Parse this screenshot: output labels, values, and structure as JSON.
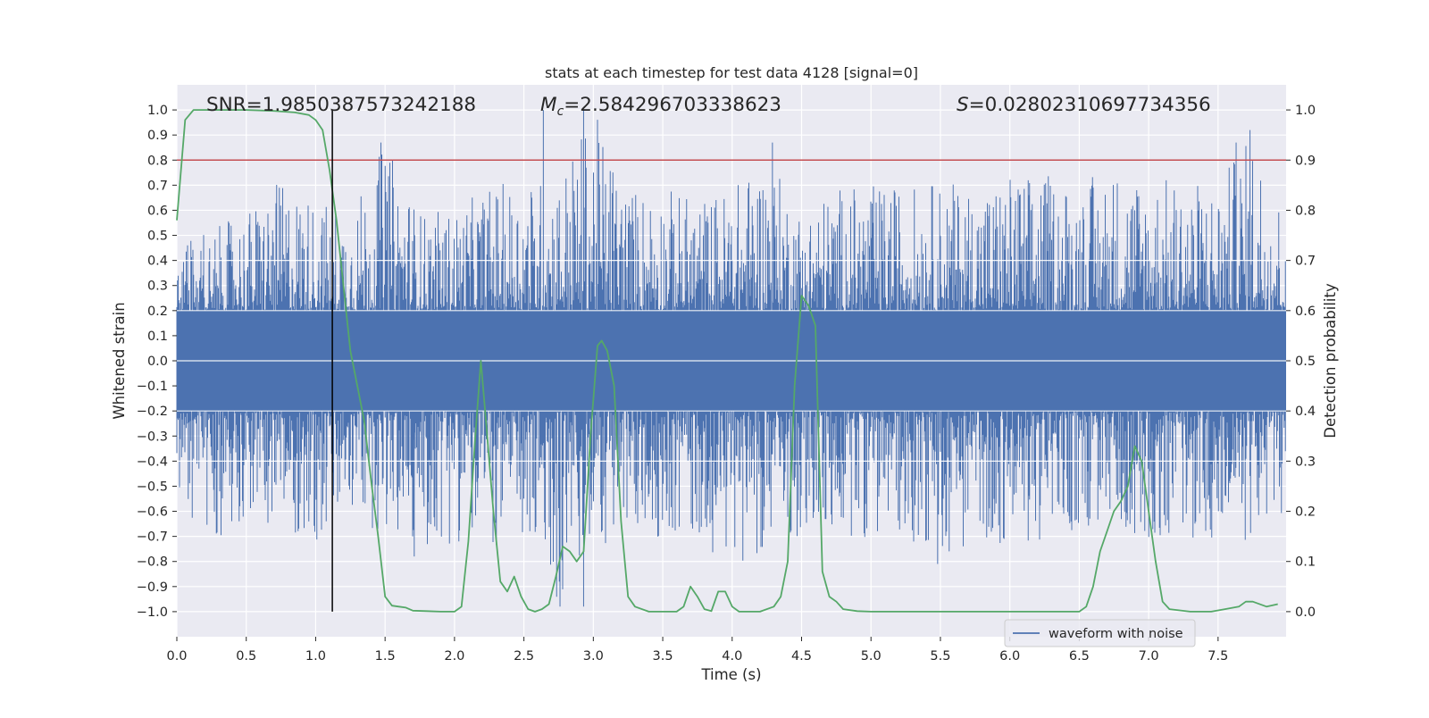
{
  "chart_data": {
    "type": "line",
    "title": "stats at each timestep for test data 4128 [signal=0]",
    "xlabel": "Time (s)",
    "ylabel": "Whitened strain",
    "ylabel_right": "Detection probability",
    "xlim": [
      0,
      7.99
    ],
    "ylim": [
      -1.1,
      1.1
    ],
    "ylim_right": [
      -0.05,
      1.05
    ],
    "x_ticks": [
      0.0,
      0.5,
      1.0,
      1.5,
      2.0,
      2.5,
      3.0,
      3.5,
      4.0,
      4.5,
      5.0,
      5.5,
      6.0,
      6.5,
      7.0,
      7.5
    ],
    "x_tick_labels": [
      "0.0",
      "0.5",
      "1.0",
      "1.5",
      "2.0",
      "2.5",
      "3.0",
      "3.5",
      "4.0",
      "4.5",
      "5.0",
      "5.5",
      "6.0",
      "6.5",
      "7.0",
      "7.5"
    ],
    "y_ticks": [
      -1.0,
      -0.9,
      -0.8,
      -0.7,
      -0.6,
      -0.5,
      -0.4,
      -0.3,
      -0.2,
      -0.1,
      0.0,
      0.1,
      0.2,
      0.3,
      0.4,
      0.5,
      0.6,
      0.7,
      0.8,
      0.9,
      1.0
    ],
    "y_tick_labels": [
      "−1.0",
      "−0.9",
      "−0.8",
      "−0.7",
      "−0.6",
      "−0.5",
      "−0.4",
      "−0.3",
      "−0.2",
      "−0.1",
      "0.0",
      "0.1",
      "0.2",
      "0.3",
      "0.4",
      "0.5",
      "0.6",
      "0.7",
      "0.8",
      "0.9",
      "1.0"
    ],
    "y_right_ticks": [
      0.0,
      0.1,
      0.2,
      0.3,
      0.4,
      0.5,
      0.6,
      0.7,
      0.8,
      0.9,
      1.0
    ],
    "y_right_tick_labels": [
      "0.0",
      "0.1",
      "0.2",
      "0.3",
      "0.4",
      "0.5",
      "0.6",
      "0.7",
      "0.8",
      "0.9",
      "1.0"
    ],
    "grid": true,
    "legend_position": "lower-right",
    "annotations": {
      "snr": "SNR=1.9850387573242188",
      "mc_symbol": "M",
      "mc_sub": "c",
      "mc_value": "=2.584296703338623",
      "s_symbol": "S",
      "s_value": "=0.02802310697734356"
    },
    "threshold": {
      "value": 0.8,
      "axis": "left",
      "color": "#c44e52"
    },
    "detection_marker_x": 1.12,
    "colors": {
      "waveform": "#4c72b0",
      "probability": "#55a868",
      "threshold": "#c44e52",
      "marker": "#000000",
      "background": "#eaeaf2",
      "grid": "#ffffff"
    },
    "series": [
      {
        "name": "waveform with noise",
        "axis": "left",
        "color": "#4c72b0",
        "core_band": [
          -0.2,
          0.2
        ],
        "envelope": {
          "x": [
            0.0,
            0.25,
            0.5,
            0.75,
            1.0,
            1.25,
            1.5,
            1.75,
            2.0,
            2.25,
            2.5,
            2.75,
            3.0,
            3.25,
            3.5,
            3.75,
            4.0,
            4.25,
            4.5,
            4.75,
            5.0,
            5.25,
            5.5,
            5.75,
            6.0,
            6.25,
            6.5,
            6.75,
            7.0,
            7.25,
            7.5,
            7.75,
            7.99
          ],
          "upper": [
            0.55,
            0.52,
            0.6,
            0.72,
            0.65,
            0.6,
            0.87,
            0.6,
            0.6,
            0.7,
            0.72,
            0.75,
            1.0,
            0.7,
            0.7,
            0.65,
            0.7,
            0.82,
            0.6,
            0.7,
            0.7,
            0.7,
            0.72,
            0.7,
            0.75,
            0.75,
            0.72,
            0.78,
            0.75,
            0.72,
            0.72,
            0.92,
            0.6
          ],
          "lower": [
            -0.65,
            -0.73,
            -0.62,
            -0.67,
            -0.75,
            -0.62,
            -0.7,
            -0.78,
            -0.72,
            -0.75,
            -0.75,
            -0.98,
            -0.75,
            -0.72,
            -0.7,
            -0.72,
            -0.82,
            -0.75,
            -0.7,
            -0.72,
            -0.7,
            -0.7,
            -0.8,
            -0.72,
            -0.75,
            -0.72,
            -0.7,
            -0.65,
            -0.72,
            -0.7,
            -0.75,
            -0.72,
            -0.6
          ]
        },
        "spikes": [
          {
            "x": 1.47,
            "y": 0.87
          },
          {
            "x": 2.64,
            "y": 1.0
          },
          {
            "x": 2.93,
            "y": 1.0
          },
          {
            "x": 4.29,
            "y": 0.87
          },
          {
            "x": 7.73,
            "y": 0.92
          },
          {
            "x": 7.63,
            "y": 0.87
          },
          {
            "x": 2.76,
            "y": -0.98
          },
          {
            "x": 2.93,
            "y": -0.98
          },
          {
            "x": 5.48,
            "y": -0.81
          },
          {
            "x": 1.71,
            "y": -0.78
          }
        ]
      },
      {
        "name": "",
        "axis": "right",
        "color": "#55a868",
        "x": [
          0.0,
          0.06,
          0.12,
          0.2,
          0.3,
          0.5,
          0.7,
          0.85,
          0.95,
          1.0,
          1.05,
          1.1,
          1.15,
          1.2,
          1.25,
          1.3,
          1.35,
          1.4,
          1.45,
          1.5,
          1.55,
          1.6,
          1.65,
          1.7,
          1.8,
          1.9,
          2.0,
          2.05,
          2.1,
          2.15,
          2.19,
          2.23,
          2.28,
          2.33,
          2.38,
          2.43,
          2.48,
          2.53,
          2.58,
          2.63,
          2.68,
          2.73,
          2.78,
          2.83,
          2.88,
          2.93,
          2.98,
          3.03,
          3.06,
          3.1,
          3.15,
          3.2,
          3.25,
          3.3,
          3.4,
          3.5,
          3.6,
          3.65,
          3.7,
          3.75,
          3.8,
          3.85,
          3.9,
          3.95,
          4.0,
          4.05,
          4.1,
          4.2,
          4.3,
          4.35,
          4.4,
          4.45,
          4.5,
          4.55,
          4.6,
          4.65,
          4.7,
          4.75,
          4.8,
          4.9,
          5.0,
          5.5,
          6.0,
          6.5,
          6.55,
          6.6,
          6.65,
          6.7,
          6.75,
          6.8,
          6.85,
          6.9,
          6.95,
          7.0,
          7.05,
          7.1,
          7.15,
          7.3,
          7.45,
          7.55,
          7.65,
          7.7,
          7.75,
          7.85,
          7.93
        ],
        "values": [
          0.78,
          0.98,
          1.0,
          1.0,
          1.0,
          1.0,
          0.998,
          0.995,
          0.99,
          0.98,
          0.96,
          0.88,
          0.78,
          0.65,
          0.52,
          0.45,
          0.38,
          0.26,
          0.15,
          0.03,
          0.012,
          0.01,
          0.008,
          0.002,
          0.001,
          0.0,
          0.0,
          0.01,
          0.14,
          0.35,
          0.5,
          0.37,
          0.2,
          0.06,
          0.04,
          0.07,
          0.03,
          0.005,
          0.0,
          0.005,
          0.015,
          0.07,
          0.13,
          0.12,
          0.1,
          0.12,
          0.35,
          0.53,
          0.54,
          0.52,
          0.45,
          0.18,
          0.03,
          0.01,
          0.0,
          0.0,
          0.0,
          0.01,
          0.05,
          0.03,
          0.005,
          0.001,
          0.04,
          0.04,
          0.01,
          0.0,
          0.0,
          0.0,
          0.01,
          0.03,
          0.1,
          0.45,
          0.63,
          0.61,
          0.57,
          0.08,
          0.03,
          0.02,
          0.005,
          0.001,
          0.0,
          0.0,
          0.0,
          0.0,
          0.01,
          0.05,
          0.12,
          0.16,
          0.2,
          0.22,
          0.25,
          0.33,
          0.3,
          0.2,
          0.1,
          0.02,
          0.005,
          0.0,
          0.0,
          0.005,
          0.01,
          0.02,
          0.02,
          0.01,
          0.015
        ]
      }
    ]
  }
}
